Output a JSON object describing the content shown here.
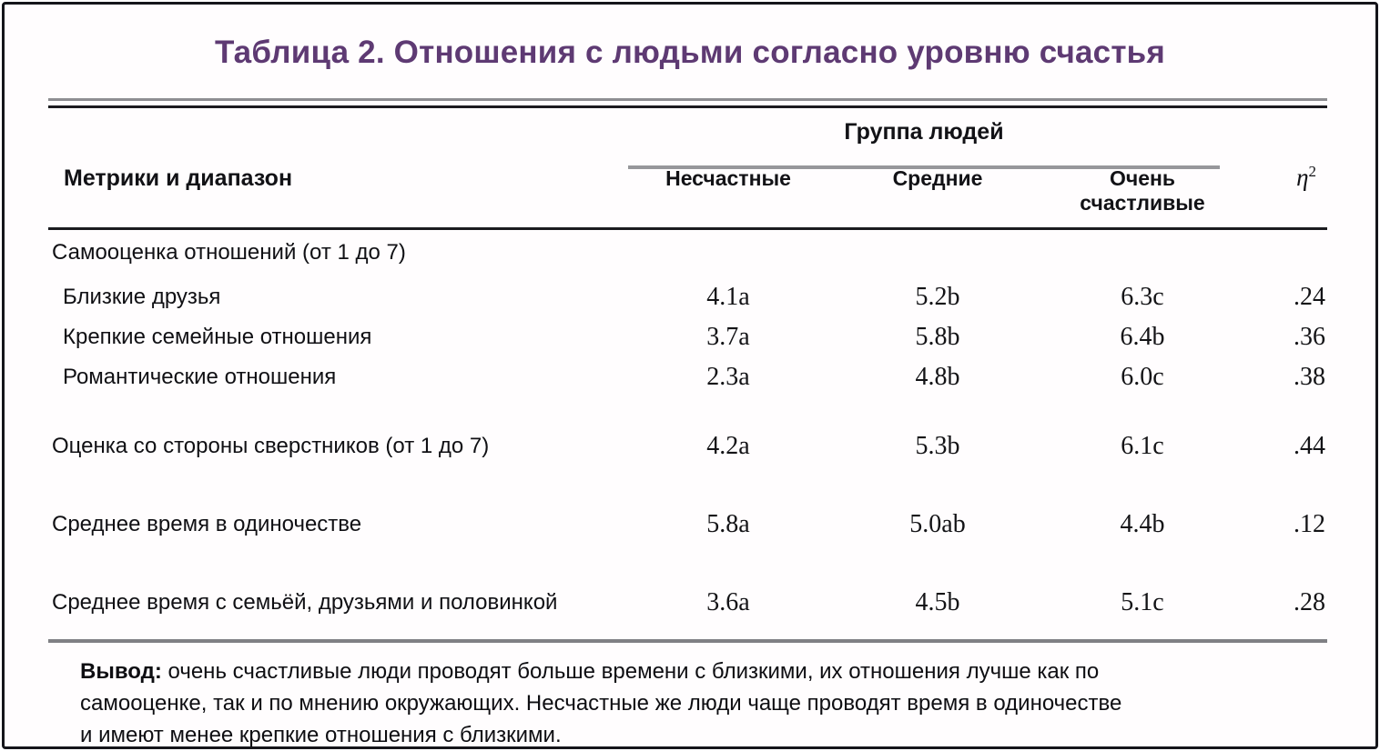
{
  "title": "Таблица 2. Отношения с людьми согласно уровню счастья",
  "table": {
    "group_header": "Группа людей",
    "metrics_header": "Метрики и диапазон",
    "columns": [
      "Несчастные",
      "Средние",
      "Очень счастливые"
    ],
    "eta": {
      "symbol": "η",
      "sup": "2"
    },
    "rows": [
      {
        "label": "Самооценка отношений (от 1 до 7)",
        "values": [
          "",
          "",
          "",
          ""
        ]
      },
      {
        "label": "Близкие друзья",
        "values": [
          "4.1a",
          "5.2b",
          "6.3c",
          ".24"
        ]
      },
      {
        "label": "Крепкие семейные отношения",
        "values": [
          "3.7a",
          "5.8b",
          "6.4b",
          ".36"
        ]
      },
      {
        "label": "Романтические отношения",
        "values": [
          "2.3a",
          "4.8b",
          "6.0c",
          ".38"
        ]
      },
      {
        "label": "Оценка со стороны сверстников (от 1 до 7)",
        "values": [
          "4.2a",
          "5.3b",
          "6.1c",
          ".44"
        ]
      },
      {
        "label": "Среднее время в одиночестве",
        "values": [
          "5.8a",
          "5.0ab",
          "4.4b",
          ".12"
        ]
      },
      {
        "label": "Среднее время с семьёй, друзьями и половинкой",
        "values": [
          "3.6a",
          "4.5b",
          "5.1c",
          ".28"
        ]
      }
    ]
  },
  "footer": {
    "label": "Вывод:",
    "lines": [
      " очень счастливые люди проводят больше времени с близкими, их отношения лучше как по",
      "самооценке, так и по мнению окружающих. Несчастные же люди чаще проводят время в одиночестве",
      "и имеют менее крепкие отношения с близкими."
    ]
  },
  "colors": {
    "title_accent": "#5e3a73",
    "rule_gray": "#8e8e92",
    "rule_dark": "#1b1b1f"
  }
}
